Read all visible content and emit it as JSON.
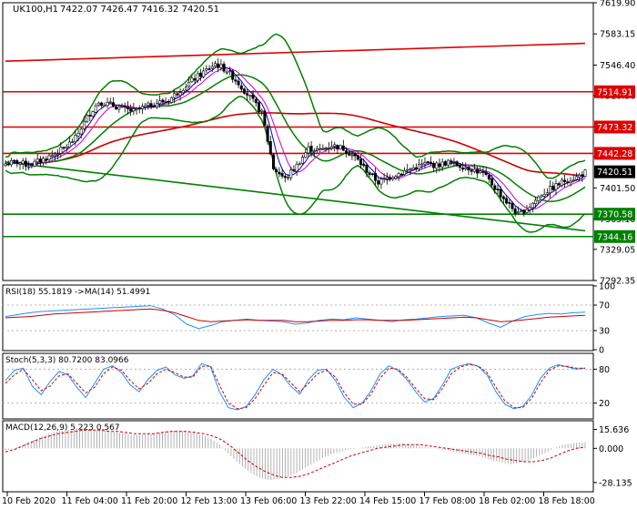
{
  "header": {
    "symbol": "UK100,H1",
    "ohlc": "7422.07 7426.47 7416.32 7420.51"
  },
  "colors": {
    "candle_up": "#ffffff",
    "candle_down": "#000000",
    "bollinger": "#008000",
    "ma_fast": "#0000cc",
    "ma_mid": "#cc00cc",
    "ma_slow": "#cc0000",
    "level_red": "#e00000",
    "level_green": "#008000",
    "rsi_line": "#1e90ff",
    "rsi_ma": "#cc0000",
    "grid": "#b0b0b0"
  },
  "chart_data": [
    {
      "type": "candlestick",
      "panel": "price",
      "ylim": [
        7292.35,
        7619.9
      ],
      "y_ticks": [
        7619.9,
        7583.15,
        7546.4,
        7510.36,
        7473.61,
        7438.29,
        7401.5,
        7365.1,
        7329.05,
        7292.35
      ],
      "x_tick_labels": [
        "10 Feb 2020",
        "11 Feb 04:00",
        "11 Feb 20:00",
        "12 Feb 13:00",
        "13 Feb 06:00",
        "13 Feb 22:00",
        "14 Feb 15:00",
        "17 Feb 08:00",
        "18 Feb 02:00",
        "18 Feb 18:00"
      ],
      "close_path": [
        [
          0,
          7430
        ],
        [
          4,
          7432
        ],
        [
          8,
          7428
        ],
        [
          12,
          7434
        ],
        [
          16,
          7440
        ],
        [
          20,
          7448
        ],
        [
          24,
          7460
        ],
        [
          28,
          7485
        ],
        [
          32,
          7503
        ],
        [
          36,
          7500
        ],
        [
          40,
          7495
        ],
        [
          44,
          7492
        ],
        [
          48,
          7497
        ],
        [
          52,
          7502
        ],
        [
          56,
          7505
        ],
        [
          60,
          7517
        ],
        [
          64,
          7528
        ],
        [
          68,
          7538
        ],
        [
          72,
          7548
        ],
        [
          76,
          7540
        ],
        [
          80,
          7525
        ],
        [
          84,
          7508
        ],
        [
          88,
          7490
        ],
        [
          92,
          7425
        ],
        [
          96,
          7412
        ],
        [
          100,
          7428
        ],
        [
          104,
          7448
        ],
        [
          108,
          7446
        ],
        [
          112,
          7452
        ],
        [
          116,
          7448
        ],
        [
          120,
          7438
        ],
        [
          124,
          7422
        ],
        [
          128,
          7408
        ],
        [
          132,
          7415
        ],
        [
          136,
          7420
        ],
        [
          140,
          7425
        ],
        [
          144,
          7430
        ],
        [
          148,
          7428
        ],
        [
          152,
          7432
        ],
        [
          156,
          7428
        ],
        [
          160,
          7424
        ],
        [
          164,
          7418
        ],
        [
          168,
          7402
        ],
        [
          172,
          7385
        ],
        [
          176,
          7370
        ],
        [
          180,
          7380
        ],
        [
          184,
          7394
        ],
        [
          188,
          7402
        ],
        [
          192,
          7410
        ],
        [
          196,
          7414
        ],
        [
          199,
          7420
        ]
      ],
      "levels": [
        {
          "label": "7514.91",
          "value": 7514.91,
          "color": "red"
        },
        {
          "label": "7473.32",
          "value": 7473.32,
          "color": "red"
        },
        {
          "label": "7442.28",
          "value": 7442.28,
          "color": "red"
        },
        {
          "label": "7420.51",
          "value": 7420.51,
          "color": "black"
        },
        {
          "label": "7370.58",
          "value": 7370.58,
          "color": "green"
        },
        {
          "label": "7344.16",
          "value": 7344.16,
          "color": "green"
        }
      ],
      "trendlines": [
        {
          "color": "red",
          "from": [
            0,
            7551
          ],
          "to": [
            199,
            7572
          ]
        },
        {
          "color": "green",
          "from": [
            0,
            7432
          ],
          "to": [
            199,
            7351
          ]
        }
      ]
    },
    {
      "type": "line",
      "panel": "rsi",
      "label": "RSI(18) 55.1819  ->MA(14) 51.4991",
      "ylim": [
        0,
        100
      ],
      "y_ticks": [
        100,
        70,
        30,
        0
      ],
      "series": [
        {
          "values": [
            52,
            55,
            58,
            60,
            61,
            62,
            63,
            64,
            65,
            66,
            67,
            68,
            69,
            64,
            55,
            40,
            33,
            38,
            44,
            46,
            48,
            46,
            45,
            44,
            40,
            42,
            46,
            48,
            47,
            50,
            48,
            46,
            44,
            47,
            48,
            50,
            52,
            53,
            54,
            50,
            42,
            35,
            45,
            52,
            55,
            57,
            56,
            58,
            59
          ]
        },
        {
          "values": [
            50,
            51,
            52,
            54,
            56,
            57,
            58,
            59,
            60,
            61,
            62,
            63,
            64,
            62,
            58,
            52,
            46,
            44,
            45,
            46,
            47,
            46,
            46,
            46,
            44,
            44,
            45,
            46,
            46,
            47,
            47,
            46,
            46,
            46,
            47,
            48,
            49,
            50,
            51,
            50,
            47,
            44,
            45,
            47,
            49,
            51,
            52,
            53,
            54
          ]
        }
      ]
    },
    {
      "type": "line",
      "panel": "stochastic",
      "label": "Stoch(5,3,3) 80.7200 83.0966",
      "ylim": [
        0,
        100
      ],
      "y_ticks": [
        80,
        20
      ],
      "series": [
        {
          "values": [
            60,
            78,
            82,
            50,
            35,
            58,
            76,
            70,
            48,
            30,
            55,
            80,
            86,
            74,
            52,
            40,
            62,
            78,
            84,
            70,
            64,
            68,
            90,
            84,
            40,
            12,
            8,
            14,
            35,
            62,
            80,
            70,
            50,
            36,
            62,
            78,
            80,
            60,
            30,
            12,
            20,
            42,
            72,
            86,
            78,
            62,
            40,
            22,
            28,
            52,
            80,
            86,
            90,
            85,
            70,
            40,
            18,
            10,
            14,
            34,
            64,
            82,
            88,
            84,
            80,
            82
          ]
        },
        {
          "values": [
            55,
            70,
            80,
            62,
            42,
            50,
            68,
            72,
            55,
            38,
            48,
            72,
            84,
            78,
            60,
            45,
            55,
            72,
            80,
            74,
            66,
            66,
            85,
            86,
            52,
            20,
            10,
            12,
            28,
            52,
            74,
            72,
            56,
            40,
            55,
            72,
            78,
            66,
            38,
            18,
            18,
            36,
            64,
            82,
            80,
            66,
            46,
            28,
            26,
            46,
            72,
            84,
            88,
            86,
            74,
            48,
            24,
            12,
            12,
            28,
            56,
            78,
            86,
            85,
            82,
            82
          ]
        }
      ]
    },
    {
      "type": "bar",
      "panel": "macd",
      "label": "MACD(12,26,9) 5.223 0.567",
      "ylim": [
        -35,
        22
      ],
      "y_ticks": [
        15.636,
        0.0,
        -28.135
      ],
      "values": [
        -2,
        0,
        3,
        6,
        9,
        12,
        14,
        15,
        16,
        16,
        15,
        15,
        14,
        13,
        12,
        11,
        11,
        12,
        13,
        14,
        15,
        14,
        13,
        11,
        8,
        3,
        -4,
        -11,
        -17,
        -22,
        -25,
        -26,
        -25,
        -23,
        -20,
        -16,
        -12,
        -8,
        -5,
        -3,
        -1,
        0,
        1,
        2,
        3,
        4,
        4,
        3,
        2,
        1,
        0,
        -1,
        -2,
        -4,
        -5,
        -6,
        -8,
        -10,
        -12,
        -13,
        -12,
        -10,
        -7,
        -4,
        0,
        3,
        4,
        5
      ],
      "series": [
        {
          "values": [
            -3,
            -1,
            2,
            5,
            8,
            10,
            12,
            13,
            14,
            15,
            15,
            15,
            14,
            14,
            13,
            12,
            12,
            12,
            13,
            14,
            14,
            14,
            13,
            12,
            10,
            7,
            2,
            -4,
            -10,
            -15,
            -19,
            -22,
            -24,
            -24,
            -23,
            -21,
            -18,
            -15,
            -12,
            -9,
            -6,
            -4,
            -2,
            0,
            1,
            2,
            3,
            3,
            3,
            2,
            1,
            0,
            -1,
            -2,
            -3,
            -4,
            -6,
            -7,
            -9,
            -10,
            -11,
            -11,
            -10,
            -8,
            -5,
            -2,
            0,
            1
          ]
        }
      ]
    }
  ]
}
